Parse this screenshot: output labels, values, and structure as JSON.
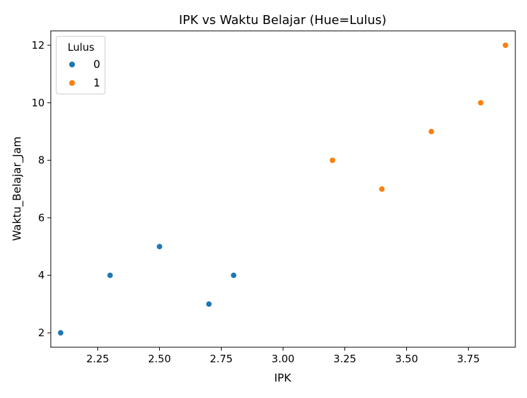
{
  "chart_data": {
    "type": "scatter",
    "title": "IPK vs Waktu Belajar (Hue=Lulus)",
    "xlabel": "IPK",
    "ylabel": "Waktu_Belajar_Jam",
    "xlim": [
      2.06,
      3.94
    ],
    "ylim": [
      1.5,
      12.5
    ],
    "xticks": [
      2.25,
      2.5,
      2.75,
      3.0,
      3.25,
      3.5,
      3.75
    ],
    "xtick_labels": [
      "2.25",
      "2.50",
      "2.75",
      "3.00",
      "3.25",
      "3.50",
      "3.75"
    ],
    "yticks": [
      2,
      4,
      6,
      8,
      10,
      12
    ],
    "ytick_labels": [
      "2",
      "4",
      "6",
      "8",
      "10",
      "12"
    ],
    "grid": false,
    "legend": {
      "title": "Lulus",
      "placement": "top-left"
    },
    "series": [
      {
        "name": "0",
        "color": "#1f77b4",
        "points": [
          {
            "x": 2.1,
            "y": 2
          },
          {
            "x": 2.3,
            "y": 4
          },
          {
            "x": 2.5,
            "y": 5
          },
          {
            "x": 2.7,
            "y": 3
          },
          {
            "x": 2.8,
            "y": 4
          }
        ]
      },
      {
        "name": "1",
        "color": "#ff7f0e",
        "points": [
          {
            "x": 3.2,
            "y": 8
          },
          {
            "x": 3.4,
            "y": 7
          },
          {
            "x": 3.6,
            "y": 9
          },
          {
            "x": 3.8,
            "y": 10
          },
          {
            "x": 3.9,
            "y": 12
          }
        ]
      }
    ]
  }
}
